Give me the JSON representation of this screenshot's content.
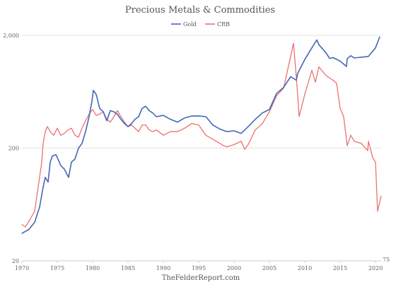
{
  "chart_data": {
    "type": "line",
    "title": "Precious Metals & Commodities",
    "footer": "TheFelderReport.com",
    "y_scale": "log",
    "ylim": [
      20,
      2000
    ],
    "y_ticks": [
      20,
      200,
      2000
    ],
    "y_tick_labels": [
      "20",
      "200",
      "2,000"
    ],
    "x_range": [
      1970,
      2020.8
    ],
    "x_ticks": [
      1970,
      1975,
      1980,
      1985,
      1990,
      1995,
      2000,
      2005,
      2010,
      2015,
      2020
    ],
    "x_tick_labels": [
      "1970",
      "1975",
      "1980",
      "1985",
      "1990",
      "1995",
      "2000",
      "2005",
      "2010",
      "2015",
      "2020"
    ],
    "last_value_label": "75",
    "legend_position": "top-center",
    "grid": "horizontal",
    "series": [
      {
        "name": "Gold",
        "color": "#4468b6",
        "x": [
          1970,
          1971,
          1971.8,
          1972.5,
          1973,
          1973.3,
          1973.7,
          1974,
          1974.3,
          1974.8,
          1975,
          1975.5,
          1976,
          1976.6,
          1977,
          1977.5,
          1978,
          1978.5,
          1979,
          1979.5,
          1979.9,
          1980.1,
          1980.5,
          1981,
          1981.5,
          1982,
          1982.5,
          1983,
          1983.5,
          1984,
          1984.5,
          1985,
          1985.5,
          1986,
          1986.5,
          1987,
          1987.5,
          1988,
          1988.5,
          1989,
          1990,
          1991,
          1992,
          1993,
          1994,
          1995,
          1996,
          1997,
          1998,
          1999,
          2000,
          2001,
          2002,
          2003,
          2004,
          2005,
          2006,
          2007,
          2008,
          2008.8,
          2009,
          2010,
          2011,
          2011.7,
          2012,
          2013,
          2013.5,
          2014,
          2015,
          2015.9,
          2016,
          2016.5,
          2017,
          2018,
          2019,
          2020,
          2020.6
        ],
        "values": [
          35,
          38,
          44,
          60,
          90,
          110,
          100,
          150,
          170,
          175,
          165,
          140,
          130,
          110,
          150,
          160,
          200,
          220,
          280,
          380,
          520,
          650,
          600,
          450,
          420,
          350,
          430,
          420,
          400,
          360,
          330,
          310,
          330,
          360,
          380,
          450,
          470,
          430,
          410,
          380,
          390,
          360,
          340,
          370,
          385,
          385,
          380,
          320,
          295,
          280,
          285,
          270,
          310,
          360,
          410,
          440,
          610,
          690,
          860,
          800,
          920,
          1220,
          1550,
          1820,
          1650,
          1400,
          1250,
          1270,
          1180,
          1060,
          1240,
          1320,
          1260,
          1280,
          1300,
          1550,
          1940
        ]
      },
      {
        "name": "CRB",
        "color": "#ee7070",
        "x": [
          1970,
          1970.5,
          1971,
          1971.8,
          1972.3,
          1972.8,
          1973,
          1973.3,
          1973.6,
          1974,
          1974.5,
          1975,
          1975.5,
          1976,
          1976.5,
          1977,
          1977.5,
          1978,
          1978.5,
          1979,
          1979.5,
          1980,
          1980.5,
          1981,
          1981.5,
          1982,
          1982.5,
          1983,
          1983.5,
          1984,
          1984.5,
          1985,
          1985.5,
          1986,
          1986.5,
          1987,
          1987.5,
          1988,
          1988.5,
          1989,
          1990,
          1991,
          1992,
          1993,
          1994,
          1995,
          1996,
          1997,
          1998,
          1998.5,
          1999,
          2000,
          2001,
          2001.5,
          2002,
          2003,
          2004,
          2005,
          2006,
          2007,
          2008,
          2008.4,
          2008.9,
          2009.2,
          2010,
          2011,
          2011.5,
          2012,
          2013,
          2014,
          2014.5,
          2015,
          2015.5,
          2016,
          2016.5,
          2017,
          2018,
          2018.9,
          2019,
          2019.6,
          2020,
          2020.3,
          2020.8
        ],
        "values": [
          42,
          40,
          45,
          55,
          90,
          150,
          220,
          280,
          310,
          280,
          260,
          300,
          260,
          270,
          290,
          300,
          260,
          250,
          300,
          350,
          400,
          440,
          390,
          400,
          420,
          360,
          340,
          380,
          430,
          380,
          340,
          310,
          320,
          300,
          280,
          320,
          320,
          290,
          280,
          290,
          260,
          280,
          280,
          300,
          330,
          320,
          260,
          240,
          220,
          210,
          205,
          215,
          230,
          195,
          215,
          290,
          330,
          420,
          580,
          680,
          1300,
          1700,
          720,
          380,
          600,
          980,
          770,
          1050,
          880,
          800,
          750,
          450,
          380,
          210,
          260,
          230,
          220,
          190,
          230,
          165,
          150,
          55,
          75
        ]
      }
    ]
  }
}
